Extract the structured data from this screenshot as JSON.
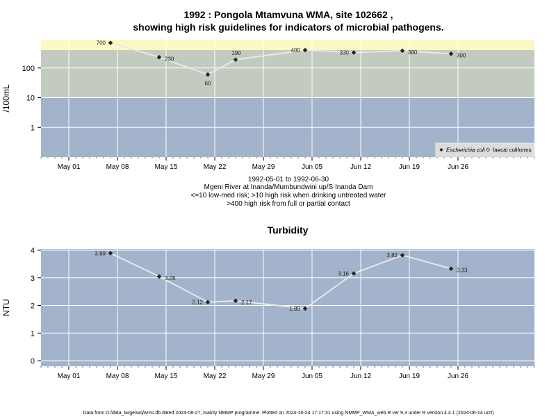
{
  "colors": {
    "panel_bg": "#a3b3cc",
    "band_low": "#a3b3cc",
    "band_mid": "#c3cbc0",
    "band_high": "#fbf8c5",
    "line": "#e8e8e8",
    "grid": "#ffffff",
    "point": "#222222"
  },
  "title_line1": "1992 : Pongola Mtamvuna WMA, site 102662 ,",
  "title_line2": "showing high risk guidelines for indicators of microbial pathogens.",
  "subtitle_lines": [
    "1992-05-01 to 1992-06-30",
    "Mgeni River at Inanda/Mumbundwini up/S Inanda Dam",
    "<=10 low-med risk; >10 high risk when drinking untreated water",
    ">400 high risk from full or partial contact"
  ],
  "footer": "Data from D:/data_large/wq/wms.db dated 2024-08-27, mainly NMMP programme. Plotted on 2024-10-24 17:17:31 using NMMP_WMA_web.R ver 9.3 under R version 4.4.1 (2024-06-14 ucrt)",
  "chart_data": [
    {
      "type": "line",
      "ylabel": "/100mL",
      "y_scale": "log",
      "ylim": [
        0.1,
        900
      ],
      "y_ticks": [
        1,
        10,
        100
      ],
      "y_tick_labels": [
        "1",
        "10",
        "100"
      ],
      "xlim": [
        "1992-04-27",
        "1992-07-07"
      ],
      "x_ticks": [
        "1992-05-01",
        "1992-05-08",
        "1992-05-15",
        "1992-05-22",
        "1992-05-29",
        "1992-06-05",
        "1992-06-12",
        "1992-06-19",
        "1992-06-26"
      ],
      "x_tick_labels": [
        "May 01",
        "May 08",
        "May 15",
        "May 22",
        "May 29",
        "Jun 05",
        "Jun 12",
        "Jun 19",
        "Jun 26"
      ],
      "bands": [
        {
          "from": 0.1,
          "to": 10,
          "color": "#a3b3cc"
        },
        {
          "from": 10,
          "to": 400,
          "color": "#c3cbc0"
        },
        {
          "from": 400,
          "to": 900,
          "color": "#fbf8c5"
        }
      ],
      "grid": true,
      "legend": {
        "placement": "bottom-right",
        "entries": [
          "Escherichia coli",
          "faecal coliforms"
        ]
      },
      "series": [
        {
          "name": "Escherichia coli",
          "x": [
            "1992-05-07",
            "1992-05-14",
            "1992-05-21",
            "1992-05-25",
            "1992-06-04",
            "1992-06-11",
            "1992-06-18",
            "1992-06-25"
          ],
          "y": [
            700,
            230,
            60,
            190,
            400,
            330,
            380,
            300
          ],
          "labels": [
            "700",
            "230",
            "60",
            "190",
            "400",
            "330",
            "380",
            "300"
          ],
          "label_pos": [
            "left",
            "right",
            "below",
            "above",
            "left",
            "left",
            "right",
            "right"
          ]
        }
      ]
    },
    {
      "type": "line",
      "title": "Turbidity",
      "ylabel": "NTU",
      "ylim": [
        -0.2,
        4.05
      ],
      "y_ticks": [
        0,
        1,
        2,
        3,
        4
      ],
      "y_tick_labels": [
        "0",
        "1",
        "2",
        "3",
        "4"
      ],
      "xlim": [
        "1992-04-27",
        "1992-07-07"
      ],
      "x_ticks": [
        "1992-05-01",
        "1992-05-08",
        "1992-05-15",
        "1992-05-22",
        "1992-05-29",
        "1992-06-05",
        "1992-06-12",
        "1992-06-19",
        "1992-06-26"
      ],
      "x_tick_labels": [
        "May 01",
        "May 08",
        "May 15",
        "May 22",
        "May 29",
        "Jun 05",
        "Jun 12",
        "Jun 19",
        "Jun 26"
      ],
      "grid": true,
      "series": [
        {
          "x": [
            "1992-05-07",
            "1992-05-14",
            "1992-05-21",
            "1992-05-25",
            "1992-06-04",
            "1992-06-11",
            "1992-06-18",
            "1992-06-25"
          ],
          "y": [
            3.89,
            3.05,
            2.12,
            2.17,
            1.89,
            3.16,
            3.82,
            3.33
          ],
          "labels": [
            "3.89",
            "3.05",
            "2.12",
            "2.17",
            "1.89",
            "3.16",
            "3.82",
            "3.33"
          ],
          "label_pos": [
            "left",
            "right",
            "left",
            "right",
            "left",
            "left",
            "left",
            "right"
          ]
        }
      ]
    }
  ]
}
